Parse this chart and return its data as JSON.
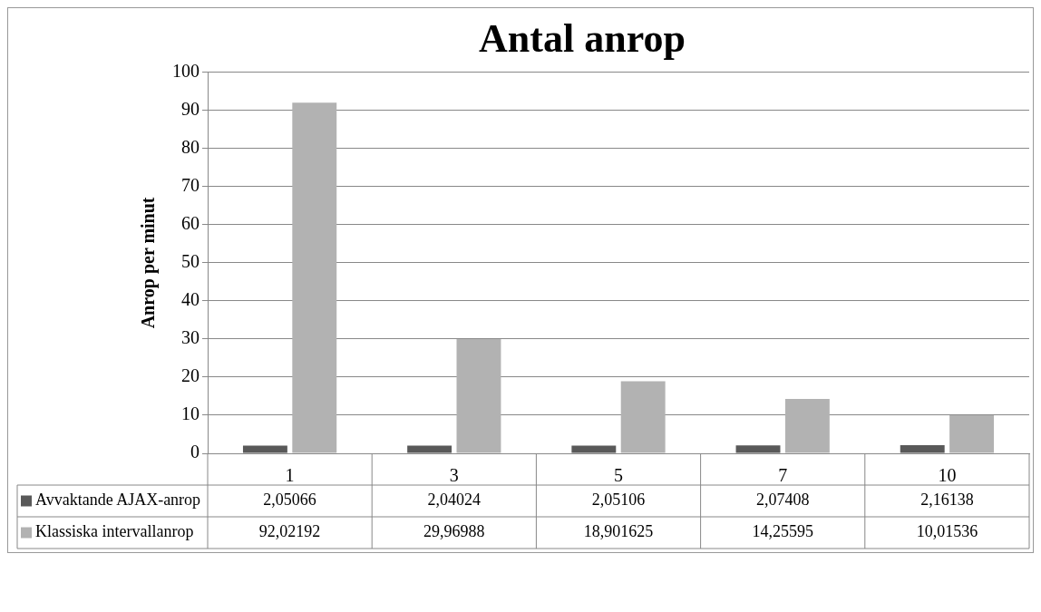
{
  "chart_data": {
    "type": "bar",
    "title": "Antal anrop",
    "ylabel": "Anrop per minut",
    "categories": [
      "1",
      "3",
      "5",
      "7",
      "10"
    ],
    "series": [
      {
        "name": "Avvaktande AJAX-anrop",
        "color": "#595959",
        "values": [
          2.05066,
          2.04024,
          2.05106,
          2.07408,
          2.16138
        ],
        "value_labels": [
          "2,05066",
          "2,04024",
          "2,05106",
          "2,07408",
          "2,16138"
        ]
      },
      {
        "name": "Klassiska intervallanrop",
        "color": "#b2b2b2",
        "values": [
          92.02192,
          29.96988,
          18.901625,
          14.25595,
          10.01536
        ],
        "value_labels": [
          "92,02192",
          "29,96988",
          "18,901625",
          "14,25595",
          "10,01536"
        ]
      }
    ],
    "ylim": [
      0,
      100
    ],
    "yticks": [
      0,
      10,
      20,
      30,
      40,
      50,
      60,
      70,
      80,
      90,
      100
    ],
    "grid": "y",
    "legend": "bottom"
  }
}
